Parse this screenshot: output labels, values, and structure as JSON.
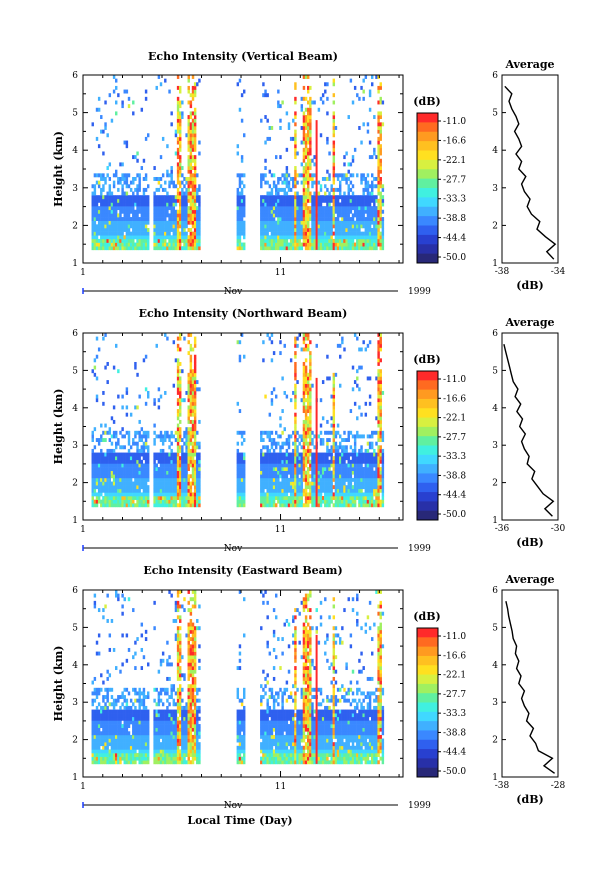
{
  "figure": {
    "xlabel": "Local Time (Day)",
    "colorbar": {
      "unit": "(dB)",
      "ticks": [
        "-11.0",
        "-16.6",
        "-22.1",
        "-27.7",
        "-33.3",
        "-38.8",
        "-44.4",
        "-50.0"
      ],
      "colors": [
        "#ff2a2a",
        "#ff6a20",
        "#ff9a20",
        "#ffc020",
        "#ffe020",
        "#d8f040",
        "#a0f060",
        "#60f0a0",
        "#40f0e0",
        "#40d8ff",
        "#40b0ff",
        "#3a88ff",
        "#2f60ef",
        "#2840d0",
        "#2830a8",
        "#282878"
      ]
    }
  },
  "chart_data": [
    {
      "type": "heatmap",
      "title": "Echo Intensity (Vertical Beam)",
      "ylabel": "Height (km)",
      "ylim": [
        1,
        6
      ],
      "yticks": [
        "1",
        "2",
        "3",
        "4",
        "5",
        "6"
      ],
      "xticks": [
        "1",
        "11"
      ],
      "month": "Nov",
      "year": "1999",
      "profile": {
        "title": "Average",
        "xlabel": "(dB)",
        "xticks": [
          "-38",
          "-34"
        ],
        "xlim": [
          -38,
          -34
        ],
        "ylim": [
          1,
          6
        ],
        "heights": [
          1.1,
          1.3,
          1.5,
          1.7,
          1.9,
          2.1,
          2.3,
          2.5,
          2.7,
          2.9,
          3.1,
          3.3,
          3.5,
          3.7,
          3.9,
          4.1,
          4.3,
          4.5,
          4.7,
          4.9,
          5.1,
          5.3,
          5.5,
          5.7
        ],
        "values": [
          -34.3,
          -34.8,
          -34.2,
          -34.9,
          -35.5,
          -35.3,
          -35.9,
          -36.2,
          -36.0,
          -36.4,
          -36.6,
          -36.3,
          -36.8,
          -36.6,
          -37.0,
          -36.6,
          -36.8,
          -37.1,
          -36.8,
          -37.0,
          -37.3,
          -37.5,
          -37.3,
          -37.8
        ]
      }
    },
    {
      "type": "heatmap",
      "title": "Echo Intensity (Northward Beam)",
      "ylabel": "Height (km)",
      "ylim": [
        1,
        6
      ],
      "yticks": [
        "1",
        "2",
        "3",
        "4",
        "5",
        "6"
      ],
      "xticks": [
        "1",
        "11"
      ],
      "month": "Nov",
      "year": "1999",
      "profile": {
        "title": "Average",
        "xlabel": "(dB)",
        "xticks": [
          "-36",
          "-30"
        ],
        "xlim": [
          -36,
          -30
        ],
        "ylim": [
          1,
          6
        ],
        "heights": [
          1.1,
          1.3,
          1.5,
          1.7,
          1.9,
          2.1,
          2.3,
          2.5,
          2.7,
          2.9,
          3.1,
          3.3,
          3.5,
          3.7,
          3.9,
          4.1,
          4.3,
          4.5,
          4.7,
          4.9,
          5.1,
          5.3,
          5.5,
          5.7
        ],
        "values": [
          -30.6,
          -31.4,
          -30.5,
          -31.6,
          -32.2,
          -32.8,
          -32.5,
          -33.3,
          -33.1,
          -33.6,
          -33.9,
          -33.5,
          -34.1,
          -33.8,
          -34.4,
          -34.0,
          -34.6,
          -34.3,
          -34.8,
          -35.0,
          -35.2,
          -35.4,
          -35.6,
          -35.8
        ]
      }
    },
    {
      "type": "heatmap",
      "title": "Echo Intensity (Eastward Beam)",
      "ylabel": "Height (km)",
      "ylim": [
        1,
        6
      ],
      "yticks": [
        "1",
        "2",
        "3",
        "4",
        "5",
        "6"
      ],
      "xticks": [
        "1",
        "11"
      ],
      "month": "Nov",
      "year": "1999",
      "profile": {
        "title": "Average",
        "xlabel": "(dB)",
        "xticks": [
          "-38",
          "-28"
        ],
        "xlim": [
          -38,
          -28
        ],
        "ylim": [
          1,
          6
        ],
        "heights": [
          1.1,
          1.3,
          1.5,
          1.7,
          1.9,
          2.1,
          2.3,
          2.5,
          2.7,
          2.9,
          3.1,
          3.3,
          3.5,
          3.7,
          3.9,
          4.1,
          4.3,
          4.5,
          4.7,
          4.9,
          5.1,
          5.3,
          5.5,
          5.7
        ],
        "values": [
          -28.6,
          -30.5,
          -29.0,
          -31.5,
          -32.0,
          -33.0,
          -32.4,
          -33.6,
          -33.2,
          -34.0,
          -34.5,
          -34.0,
          -35.0,
          -34.6,
          -35.4,
          -35.0,
          -35.6,
          -35.4,
          -36.0,
          -36.2,
          -36.5,
          -36.8,
          -37.0,
          -37.3
        ]
      }
    }
  ]
}
